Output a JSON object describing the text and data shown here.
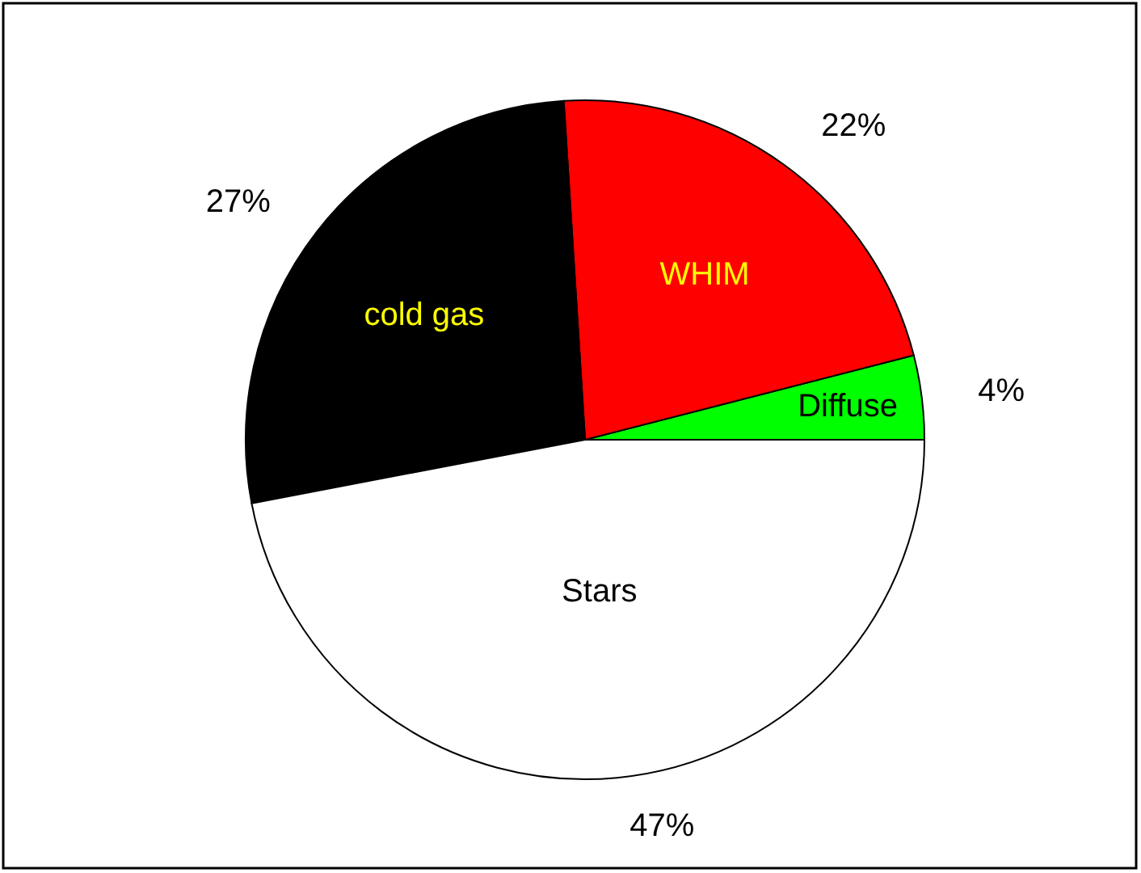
{
  "chart_data": {
    "type": "pie",
    "categories": [
      "Diffuse",
      "WHIM",
      "cold gas",
      "Stars"
    ],
    "values": [
      4,
      22,
      27,
      47
    ],
    "colors": [
      "#00ff00",
      "#ff0000",
      "#000000",
      "#ffffff"
    ],
    "value_labels": [
      "4%",
      "22%",
      "27%",
      "47%"
    ],
    "legend": false
  }
}
